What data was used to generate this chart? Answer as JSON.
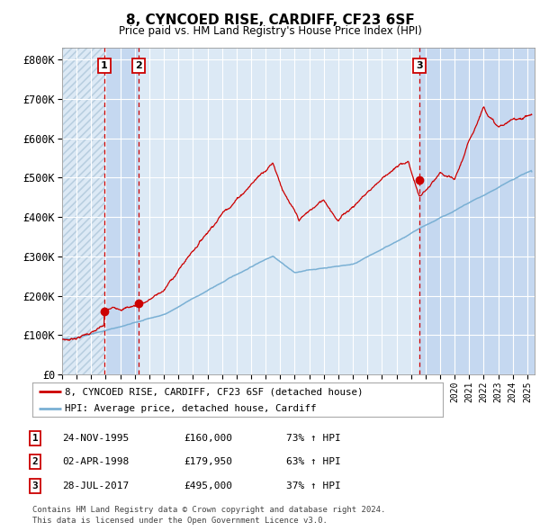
{
  "title": "8, CYNCOED RISE, CARDIFF, CF23 6SF",
  "subtitle": "Price paid vs. HM Land Registry's House Price Index (HPI)",
  "ylabel_ticks": [
    "£0",
    "£100K",
    "£200K",
    "£300K",
    "£400K",
    "£500K",
    "£600K",
    "£700K",
    "£800K"
  ],
  "ytick_values": [
    0,
    100000,
    200000,
    300000,
    400000,
    500000,
    600000,
    700000,
    800000
  ],
  "ylim": [
    0,
    830000
  ],
  "xlim_start": 1993.0,
  "xlim_end": 2025.5,
  "bg_color": "#dce9f5",
  "hatch_color": "#c5d5e8",
  "grid_color": "#ffffff",
  "red_line_color": "#cc0000",
  "blue_line_color": "#7ab0d4",
  "marker_color": "#cc0000",
  "dashed_line_color": "#cc0000",
  "purchase_shade_color": "#c5d8f0",
  "transactions": [
    {
      "label": "1",
      "date": 1995.9,
      "price": 160000,
      "date_str": "24-NOV-1995",
      "price_str": "£160,000",
      "hpi_str": "73% ↑ HPI"
    },
    {
      "label": "2",
      "date": 1998.25,
      "price": 179950,
      "date_str": "02-APR-1998",
      "price_str": "£179,950",
      "hpi_str": "63% ↑ HPI"
    },
    {
      "label": "3",
      "date": 2017.58,
      "price": 495000,
      "date_str": "28-JUL-2017",
      "price_str": "£495,000",
      "hpi_str": "37% ↑ HPI"
    }
  ],
  "legend_line1": "8, CYNCOED RISE, CARDIFF, CF23 6SF (detached house)",
  "legend_line2": "HPI: Average price, detached house, Cardiff",
  "footer": "Contains HM Land Registry data © Crown copyright and database right 2024.\nThis data is licensed under the Open Government Licence v3.0."
}
